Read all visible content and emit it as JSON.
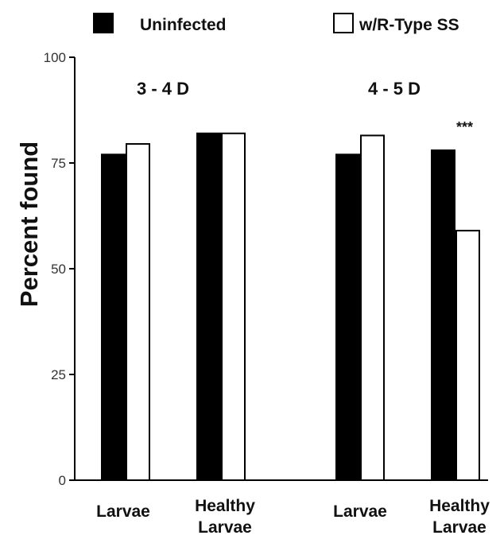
{
  "chart_data": {
    "type": "bar",
    "ylabel": "Percent found",
    "xlabel": "",
    "ylim": [
      0,
      100
    ],
    "yticks": [
      "0",
      "25",
      "50",
      "75",
      "100"
    ],
    "grid": false,
    "legend_position": "top",
    "groups": [
      {
        "label": "3 - 4 D",
        "categories": [
          "Larvae",
          "Healthy Larvae"
        ]
      },
      {
        "label": "4 - 5 D",
        "categories": [
          "Larvae",
          "Healthy Larvae"
        ]
      }
    ],
    "category_lines": [
      [
        "Larvae"
      ],
      [
        "Healthy",
        "Larvae"
      ],
      [
        "Larvae"
      ],
      [
        "Healthy",
        "Larvae"
      ]
    ],
    "series": [
      {
        "name": "Uninfected",
        "color": "#000000",
        "values": [
          77,
          82,
          77,
          78
        ]
      },
      {
        "name": "w/R-Type SS",
        "color": "#ffffff",
        "values": [
          79.5,
          82,
          81.5,
          59
        ]
      }
    ],
    "annotations": [
      {
        "text": "***",
        "category_index": 3
      }
    ]
  }
}
